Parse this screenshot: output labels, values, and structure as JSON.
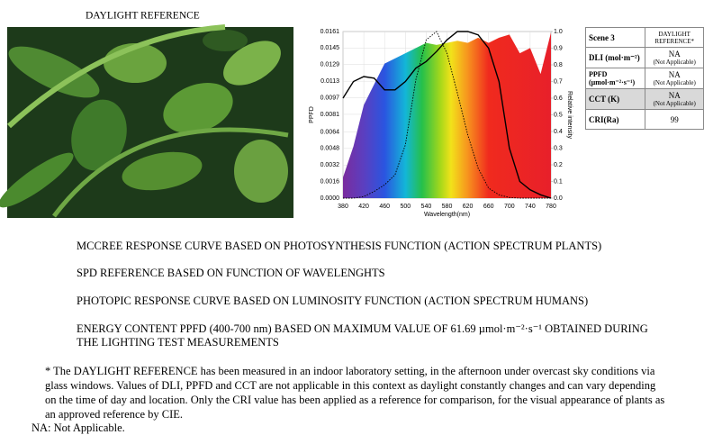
{
  "figure_title": "DAYLIGHT REFERENCE",
  "chart_data": {
    "type": "line",
    "xlabel": "Wavelength(nm)",
    "ylabel": "PPFD",
    "y2label": "Relative intensity",
    "x": [
      380,
      400,
      420,
      440,
      460,
      480,
      500,
      520,
      540,
      560,
      580,
      600,
      620,
      640,
      660,
      680,
      700,
      720,
      740,
      760,
      780
    ],
    "xlim": [
      380,
      780
    ],
    "xticks": [
      380,
      420,
      460,
      500,
      540,
      580,
      620,
      660,
      700,
      740,
      780
    ],
    "ylim": [
      0,
      0.0161
    ],
    "yticks": [
      {
        "value": 0,
        "label": "0.0000"
      },
      0.0016,
      0.0032,
      0.0048,
      0.0064,
      0.0081,
      0.0097,
      0.0113,
      0.0129,
      0.0145,
      0.0161
    ],
    "y2lim": [
      0,
      1
    ],
    "y2ticks": [
      {
        "value": 0,
        "label": "0.0"
      },
      0.1,
      0.2,
      0.3,
      0.4,
      0.5,
      0.6,
      0.7,
      0.8,
      0.9,
      {
        "value": 1,
        "label": "1.0"
      }
    ],
    "grid": true,
    "series": [
      {
        "name": "MCCREE RESPONSE CURVE BASED ON PHOTOSYNTHESIS FUNCTION (ACTION SPECTRUM PLANTS)",
        "color": "#000000",
        "style": "solid",
        "axis": "y2",
        "values": [
          0.6,
          0.7,
          0.73,
          0.72,
          0.65,
          0.65,
          0.7,
          0.78,
          0.82,
          0.88,
          0.95,
          1.0,
          1.0,
          0.98,
          0.9,
          0.7,
          0.3,
          0.1,
          0.05,
          0.02,
          0.0
        ]
      },
      {
        "name": "SPD REFERENCE BASED ON FUNCTION OF WAVELENGHTS",
        "style": "spectrum",
        "values": [
          0.002,
          0.005,
          0.009,
          0.011,
          0.013,
          0.0135,
          0.014,
          0.0145,
          0.015,
          0.0148,
          0.015,
          0.0152,
          0.015,
          0.0155,
          0.015,
          0.0155,
          0.0158,
          0.014,
          0.0145,
          0.012,
          0.016
        ]
      },
      {
        "name": "PHOTOPIC RESPONSE CURVE BASED ON LUMINOSITY FUNCTION (ACTION SPECTRUM HUMANS)",
        "color": "#000000",
        "style": "dotted",
        "axis": "y2",
        "values": [
          0,
          0,
          0.01,
          0.04,
          0.08,
          0.14,
          0.32,
          0.71,
          0.95,
          1.0,
          0.87,
          0.63,
          0.38,
          0.18,
          0.06,
          0.02,
          0.004,
          0,
          0,
          0,
          0
        ]
      }
    ]
  },
  "legend_extra": {
    "color": "#1f9e2e",
    "text": "ENERGY CONTENT PPFD (400-700 nm) BASED ON MAXIMUM VALUE OF 61.69 µmol·m⁻²·s⁻¹ OBTAINED DURING THE LIGHTING TEST MEASUREMENTS"
  },
  "table": {
    "header": [
      "Scene 3",
      "DAYLIGHT REFERENCE*"
    ],
    "rows": [
      [
        "DLI (mol·m⁻²)",
        "NA",
        "(Not Applicable)"
      ],
      [
        "PPFD (µmol·m⁻²·s⁻¹)",
        "NA",
        "(Not Applicable)"
      ],
      [
        "CCT (K)",
        "NA",
        "(Not Applicable)"
      ],
      [
        "CRI(Ra)",
        "99"
      ]
    ]
  },
  "footnote": "* The DAYLIGHT REFERENCE has been measured in an indoor laboratory setting, in the afternoon under overcast sky conditions via glass windows. Values of DLI, PPFD and CCT are not applicable in this context as daylight constantly changes and can vary depending on the time of day and location. Only the CRI value has been applied as a reference for comparison, for the visual appearance of plants as an approved reference by CIE.",
  "na_note": "NA: Not Applicable."
}
